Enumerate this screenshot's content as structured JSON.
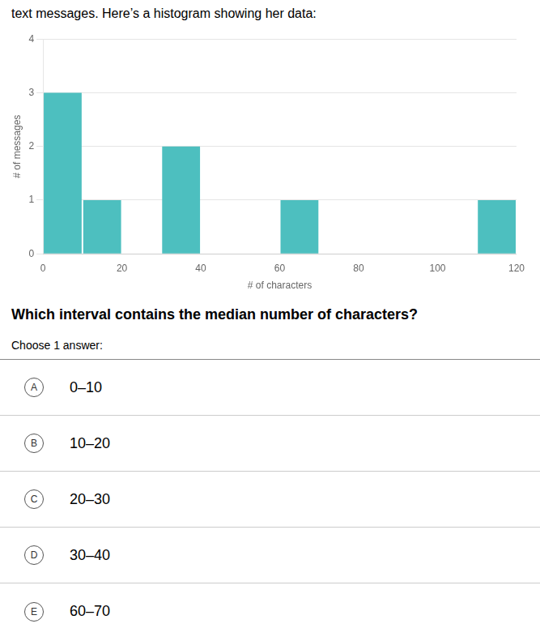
{
  "chart_data": {
    "type": "histogram",
    "title": "text messages. Here’s a histogram showing her data:",
    "bins": [
      0,
      10,
      20,
      30,
      40,
      50,
      60,
      70,
      80,
      90,
      100,
      110,
      120
    ],
    "values": [
      3,
      1,
      0,
      2,
      0,
      0,
      1,
      0,
      0,
      0,
      0,
      1
    ],
    "color": "#4DBFBF",
    "x_label": "# of characters",
    "y_label": "# of messages",
    "xlim": [
      0,
      120
    ],
    "xticks": [
      0,
      20,
      40,
      60,
      80,
      100,
      120
    ],
    "ylim": [
      0,
      4
    ],
    "yticks": [
      0,
      1,
      2,
      3,
      4
    ],
    "grid": "y",
    "annotations": [
      "Which interval contains the median number of characters?",
      "Choose 1 answer:"
    ],
    "choices": [
      {
        "label": "A",
        "text": "0–10"
      },
      {
        "label": "B",
        "text": "10–20"
      },
      {
        "label": "C",
        "text": "20–30"
      },
      {
        "label": "D",
        "text": "30–40"
      },
      {
        "label": "E",
        "text": "60–70"
      }
    ]
  }
}
